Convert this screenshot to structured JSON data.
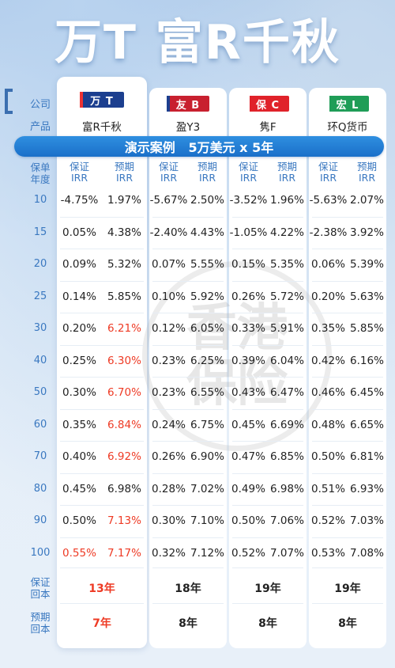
{
  "headline": "万T 富R千秋",
  "row_labels": {
    "company": "公司",
    "product": "产品",
    "policy_year": "保单\n年度",
    "guaranteed_payback": "保证\n回本",
    "expected_payback": "预期\n回本"
  },
  "columns": [
    {
      "company": "万 T",
      "product": "富R千秋",
      "badge_color": "#1c3f8f",
      "bar_color": "#e33"
    },
    {
      "company": "友 B",
      "product": "盈Y3",
      "badge_color": "#c8202f",
      "bar_color": "#1c3f8f"
    },
    {
      "company": "保 C",
      "product": "隽F",
      "badge_color": "#e0222a",
      "bar_color": "#ffffff"
    },
    {
      "company": "宏 L",
      "product": "环Q货币",
      "badge_color": "#1f9d57",
      "bar_color": "#ffffff"
    }
  ],
  "banner": "演示案例   5万美元 x 5年",
  "subheads": {
    "guaranteed": "保证\nIRR",
    "expected": "预期\nIRR"
  },
  "years": [
    "10",
    "15",
    "20",
    "25",
    "30",
    "40",
    "50",
    "60",
    "70",
    "80",
    "90",
    "100"
  ],
  "table": [
    [
      [
        "-4.75%",
        "1.97%"
      ],
      [
        "-5.67%",
        "2.50%"
      ],
      [
        "-3.52%",
        "1.96%"
      ],
      [
        "-5.63%",
        "2.07%"
      ]
    ],
    [
      [
        "0.05%",
        "4.38%"
      ],
      [
        "-2.40%",
        "4.43%"
      ],
      [
        "-1.05%",
        "4.22%"
      ],
      [
        "-2.38%",
        "3.92%"
      ]
    ],
    [
      [
        "0.09%",
        "5.32%"
      ],
      [
        "0.07%",
        "5.55%"
      ],
      [
        "0.15%",
        "5.35%"
      ],
      [
        "0.06%",
        "5.39%"
      ]
    ],
    [
      [
        "0.14%",
        "5.85%"
      ],
      [
        "0.10%",
        "5.92%"
      ],
      [
        "0.26%",
        "5.72%"
      ],
      [
        "0.20%",
        "5.63%"
      ]
    ],
    [
      [
        "0.20%",
        "6.21%"
      ],
      [
        "0.12%",
        "6.05%"
      ],
      [
        "0.33%",
        "5.91%"
      ],
      [
        "0.35%",
        "5.85%"
      ]
    ],
    [
      [
        "0.25%",
        "6.30%"
      ],
      [
        "0.23%",
        "6.25%"
      ],
      [
        "0.39%",
        "6.04%"
      ],
      [
        "0.42%",
        "6.16%"
      ]
    ],
    [
      [
        "0.30%",
        "6.70%"
      ],
      [
        "0.23%",
        "6.55%"
      ],
      [
        "0.43%",
        "6.47%"
      ],
      [
        "0.46%",
        "6.45%"
      ]
    ],
    [
      [
        "0.35%",
        "6.84%"
      ],
      [
        "0.24%",
        "6.75%"
      ],
      [
        "0.45%",
        "6.69%"
      ],
      [
        "0.48%",
        "6.65%"
      ]
    ],
    [
      [
        "0.40%",
        "6.92%"
      ],
      [
        "0.26%",
        "6.90%"
      ],
      [
        "0.47%",
        "6.85%"
      ],
      [
        "0.50%",
        "6.81%"
      ]
    ],
    [
      [
        "0.45%",
        "6.98%"
      ],
      [
        "0.28%",
        "7.02%"
      ],
      [
        "0.49%",
        "6.98%"
      ],
      [
        "0.51%",
        "6.93%"
      ]
    ],
    [
      [
        "0.50%",
        "7.13%"
      ],
      [
        "0.30%",
        "7.10%"
      ],
      [
        "0.50%",
        "7.06%"
      ],
      [
        "0.52%",
        "7.03%"
      ]
    ],
    [
      [
        "0.55%",
        "7.17%"
      ],
      [
        "0.32%",
        "7.12%"
      ],
      [
        "0.52%",
        "7.07%"
      ],
      [
        "0.53%",
        "7.08%"
      ]
    ]
  ],
  "red_cells": [
    [
      4,
      0,
      1
    ],
    [
      5,
      0,
      1
    ],
    [
      6,
      0,
      1
    ],
    [
      7,
      0,
      1
    ],
    [
      8,
      0,
      1
    ],
    [
      10,
      0,
      1
    ],
    [
      11,
      0,
      0
    ],
    [
      11,
      0,
      1
    ]
  ],
  "guaranteed_payback": [
    "13年",
    "18年",
    "19年",
    "19年"
  ],
  "expected_payback": [
    "7年",
    "8年",
    "8年",
    "8年"
  ],
  "watermark": "香港\n保险",
  "colors": {
    "accent_blue": "#1a6fc9",
    "highlight_red": "#ee3a24",
    "label_blue": "#3a78c0"
  }
}
